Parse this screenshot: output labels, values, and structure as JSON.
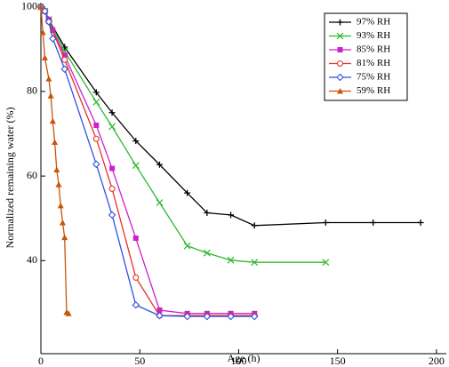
{
  "chart_data": {
    "type": "line",
    "x_label": "Age (h)",
    "y_label": "Normalized remaining water (%)",
    "xlim": [
      0,
      205
    ],
    "ylim": [
      18,
      101
    ],
    "xticks": [
      0,
      50,
      100,
      150,
      200
    ],
    "yticks": [
      40,
      60,
      80,
      100
    ],
    "legend_position": "upper right",
    "series": [
      {
        "name": "97% RH",
        "color": "#000000",
        "marker": "plus",
        "x": [
          0,
          2,
          4,
          12,
          28,
          36,
          48,
          60,
          74,
          84,
          96,
          108,
          144,
          168,
          192
        ],
        "values": [
          100,
          99,
          97,
          90.5,
          79.8,
          75,
          68.3,
          62.7,
          56,
          51.3,
          50.8,
          48.3,
          49,
          49,
          49
        ]
      },
      {
        "name": "93% RH",
        "color": "#2eb82e",
        "marker": "cross",
        "x": [
          0,
          2,
          4,
          12,
          28,
          36,
          48,
          60,
          74,
          84,
          96,
          108,
          144
        ],
        "values": [
          100,
          99,
          97,
          89.5,
          77.5,
          71.7,
          62.5,
          53.7,
          43.5,
          41.8,
          40.1,
          39.6,
          39.6
        ]
      },
      {
        "name": "85% RH",
        "color": "#cc22cc",
        "marker": "square",
        "x": [
          0,
          2,
          4,
          6,
          12,
          28,
          36,
          48,
          60,
          74,
          84,
          96,
          108
        ],
        "values": [
          100,
          99,
          97,
          94.5,
          88.5,
          72,
          61.8,
          45.3,
          28.3,
          27.5,
          27.5,
          27.5,
          27.5
        ]
      },
      {
        "name": "81% RH",
        "color": "#e8302a",
        "marker": "circle",
        "x": [
          0,
          2,
          4,
          12,
          28,
          36,
          48,
          60,
          74,
          84,
          96,
          108
        ],
        "values": [
          100,
          99,
          96.5,
          87.5,
          68.8,
          57,
          36,
          27,
          27,
          27,
          27,
          27
        ]
      },
      {
        "name": "75% RH",
        "color": "#2f52e0",
        "marker": "diamond",
        "x": [
          0,
          2,
          4,
          6,
          12,
          28,
          36,
          48,
          60,
          74,
          84,
          96,
          108
        ],
        "values": [
          100,
          99,
          96.5,
          92.5,
          85.3,
          62.8,
          50.8,
          29.5,
          27,
          26.8,
          26.8,
          26.8,
          26.8
        ]
      },
      {
        "name": "59% RH",
        "color": "#c8550a",
        "marker": "triangle",
        "x": [
          0,
          1,
          2,
          4,
          5,
          6,
          7,
          8,
          9,
          10,
          11,
          12,
          13,
          14
        ],
        "values": [
          100,
          94,
          88,
          83,
          79,
          73,
          68,
          61.5,
          58,
          53,
          49,
          45.5,
          27.8,
          27.5
        ]
      }
    ]
  }
}
